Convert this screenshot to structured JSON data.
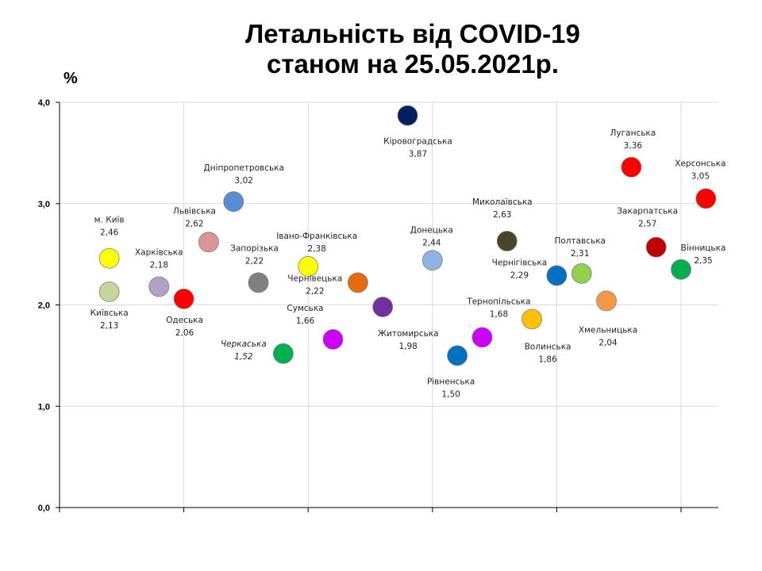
{
  "chart_data": {
    "type": "scatter",
    "title_line1": "Летальність від COVID-19",
    "title_line2": "станом на 25.05.2021р.",
    "ylabel": "%",
    "xlabel": "",
    "ylim": [
      0,
      4
    ],
    "xlim": [
      0,
      26.5
    ],
    "yticks": [
      "0,0",
      "1,0",
      "2,0",
      "3,0",
      "4,0"
    ],
    "ytick_values": [
      0,
      1,
      2,
      3,
      4
    ],
    "xgrid": [
      5,
      10,
      15,
      20,
      25
    ],
    "grid": true,
    "legend": "none",
    "points": [
      {
        "name": "м. Київ",
        "value_label": "2,46",
        "x": 2,
        "y": 2.46,
        "color": "#FFFF00"
      },
      {
        "name": "Київська",
        "value_label": "2,13",
        "x": 2,
        "y": 2.13,
        "color": "#C4D79B"
      },
      {
        "name": "Харківська",
        "value_label": "2,18",
        "x": 4,
        "y": 2.18,
        "color": "#B1A0C7"
      },
      {
        "name": "Одеська",
        "value_label": "2,06",
        "x": 5,
        "y": 2.06,
        "color": "#FF0000"
      },
      {
        "name": "Львівська",
        "value_label": "2,62",
        "x": 6,
        "y": 2.62,
        "color": "#DA9694"
      },
      {
        "name": "Дніпропетровська",
        "value_label": "3,02",
        "x": 7,
        "y": 3.02,
        "color": "#558ED5"
      },
      {
        "name": "Запорізька",
        "value_label": "2,22",
        "x": 8,
        "y": 2.22,
        "color": "#808080"
      },
      {
        "name": "Черкаська",
        "value_label": "1,52",
        "x": 9,
        "y": 1.52,
        "color": "#00B050",
        "italic": true
      },
      {
        "name": "Івано-Франківська",
        "value_label": "2,38",
        "x": 10,
        "y": 2.38,
        "color": "#FFFF00"
      },
      {
        "name": "Сумська",
        "value_label": "1,66",
        "x": 11,
        "y": 1.66,
        "color": "#CC00FF"
      },
      {
        "name": "Чернівецька",
        "value_label": "2,22",
        "x": 12,
        "y": 2.22,
        "color": "#E46C0A"
      },
      {
        "name": "Житомирська",
        "value_label": "1,98",
        "x": 13,
        "y": 1.98,
        "color": "#7030A0"
      },
      {
        "name": "Кіровоградська",
        "value_label": "3,87",
        "x": 14,
        "y": 3.87,
        "color": "#002060"
      },
      {
        "name": "Донецька",
        "value_label": "2,44",
        "x": 15,
        "y": 2.44,
        "color": "#8DB4E2"
      },
      {
        "name": "Рівненська",
        "value_label": "1,50",
        "x": 16,
        "y": 1.5,
        "color": "#0070C0"
      },
      {
        "name": "Тернопільська",
        "value_label": "1,68",
        "x": 17,
        "y": 1.68,
        "color": "#CC00FF"
      },
      {
        "name": "Миколаївська",
        "value_label": "2,63",
        "x": 18,
        "y": 2.63,
        "color": "#494529"
      },
      {
        "name": "Волинська",
        "value_label": "1,86",
        "x": 19,
        "y": 1.86,
        "color": "#FFC000"
      },
      {
        "name": "Чернігівська",
        "value_label": "2,29",
        "x": 20,
        "y": 2.29,
        "color": "#0070C0"
      },
      {
        "name": "Полтавська",
        "value_label": "2,31",
        "x": 21,
        "y": 2.31,
        "color": "#92D050"
      },
      {
        "name": "Хмельницька",
        "value_label": "2,04",
        "x": 22,
        "y": 2.04,
        "color": "#F79646"
      },
      {
        "name": "Луганська",
        "value_label": "3,36",
        "x": 23,
        "y": 3.36,
        "color": "#FF0000"
      },
      {
        "name": "Закарпатська",
        "value_label": "2,57",
        "x": 24,
        "y": 2.57,
        "color": "#C00000"
      },
      {
        "name": "Вінницька",
        "value_label": "2,35",
        "x": 25,
        "y": 2.35,
        "color": "#00B050"
      },
      {
        "name": "Херсонська",
        "value_label": "3,05",
        "x": 26,
        "y": 3.05,
        "color": "#FF0000"
      }
    ]
  }
}
